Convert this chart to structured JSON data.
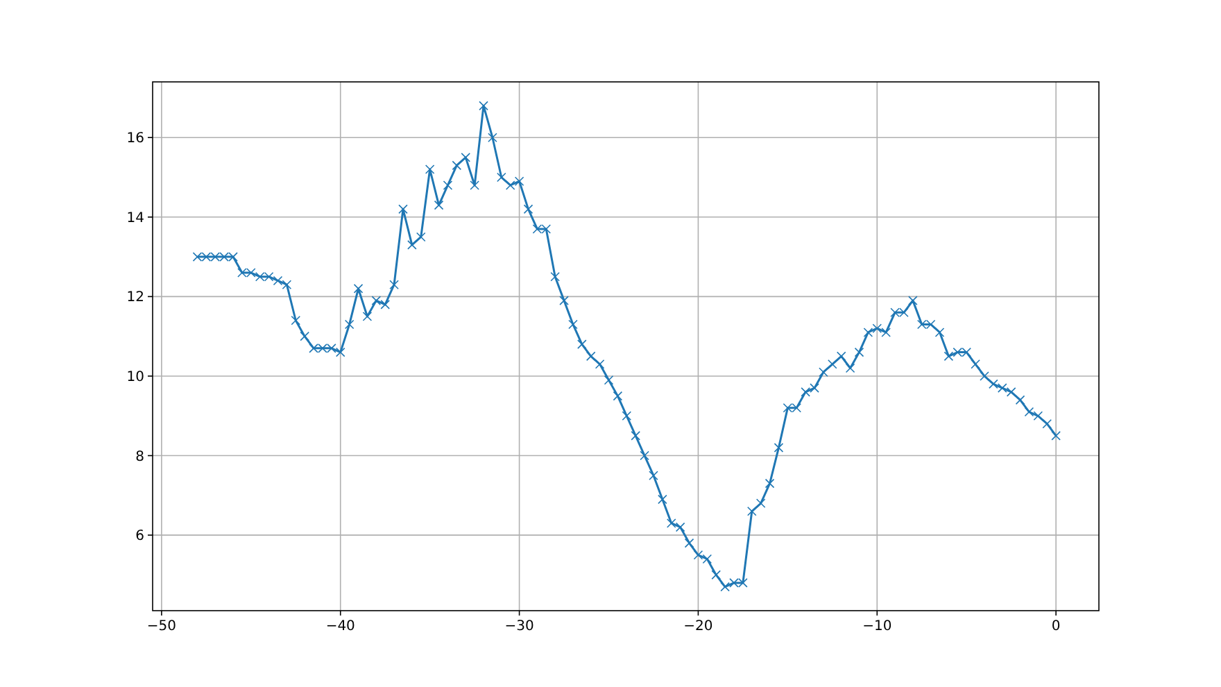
{
  "chart_data": {
    "type": "line",
    "marker": "cross",
    "grid": true,
    "x": [
      -48,
      -47.5,
      -47,
      -46.5,
      -46,
      -45.5,
      -45,
      -44.5,
      -44,
      -43.5,
      -43,
      -42.5,
      -42,
      -41.5,
      -41,
      -40.5,
      -40,
      -39.5,
      -39,
      -38.5,
      -38,
      -37.5,
      -37,
      -36.5,
      -36,
      -35.5,
      -35,
      -34.5,
      -34,
      -33.5,
      -33,
      -32.5,
      -32,
      -31.5,
      -31,
      -30.5,
      -30,
      -29.5,
      -29,
      -28.5,
      -28,
      -27.5,
      -27,
      -26.5,
      -26,
      -25.5,
      -25,
      -24.5,
      -24,
      -23.5,
      -23,
      -22.5,
      -22,
      -21.5,
      -21,
      -20.5,
      -20,
      -19.5,
      -19,
      -18.5,
      -18,
      -17.5,
      -17,
      -16.5,
      -16,
      -15.5,
      -15,
      -14.5,
      -14,
      -13.5,
      -13,
      -12.5,
      -12,
      -11.5,
      -11,
      -10.5,
      -10,
      -9.5,
      -9,
      -8.5,
      -8,
      -7.5,
      -7,
      -6.5,
      -6,
      -5.5,
      -5,
      -4.5,
      -4,
      -3.5,
      -3,
      -2.5,
      -2,
      -1.5,
      -1,
      -0.5,
      0
    ],
    "series": [
      {
        "color": "#1f77b4",
        "values": [
          13,
          13,
          13,
          13,
          13,
          12.6,
          12.6,
          12.5,
          12.5,
          12.4,
          12.3,
          11.4,
          11.0,
          10.7,
          10.7,
          10.7,
          10.6,
          11.3,
          12.2,
          11.5,
          11.9,
          11.8,
          12.3,
          14.2,
          13.3,
          13.5,
          15.2,
          14.3,
          14.8,
          15.3,
          15.5,
          14.8,
          16.8,
          16.0,
          15.0,
          14.8,
          14.9,
          14.2,
          13.7,
          13.7,
          12.5,
          11.9,
          11.3,
          10.8,
          10.5,
          10.3,
          9.9,
          9.5,
          9.0,
          8.5,
          8.0,
          7.5,
          6.9,
          6.3,
          6.2,
          5.8,
          5.5,
          5.4,
          5.0,
          4.7,
          4.8,
          4.8,
          6.6,
          6.8,
          7.3,
          8.2,
          9.2,
          9.2,
          9.6,
          9.7,
          10.1,
          10.3,
          10.5,
          10.2,
          10.6,
          11.1,
          11.2,
          11.1,
          11.6,
          11.6,
          11.9,
          11.3,
          11.3,
          11.1,
          10.5,
          10.6,
          10.6,
          10.3,
          10.0,
          9.8,
          9.7,
          9.6,
          9.4,
          9.1,
          9.0,
          8.8,
          8.5
        ]
      }
    ],
    "xlim": [
      -50.5,
      2.4
    ],
    "ylim": [
      4.1,
      17.4
    ],
    "xticks": [
      -50,
      -40,
      -30,
      -20,
      -10,
      0
    ],
    "yticks": [
      6,
      8,
      10,
      12,
      14,
      16
    ]
  }
}
